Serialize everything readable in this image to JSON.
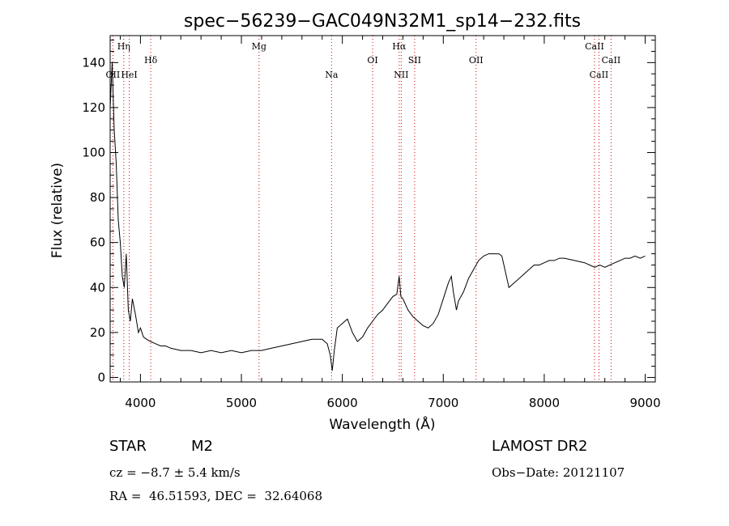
{
  "chart_data": {
    "type": "line",
    "title": "spec−56239−GAC049N32M1_sp14−232.fits",
    "xlabel": "Wavelength (Å)",
    "ylabel": "Flux (relative)",
    "xlim": [
      3700,
      9100
    ],
    "ylim": [
      -2,
      152
    ],
    "xticks": [
      4000,
      5000,
      6000,
      7000,
      8000,
      9000
    ],
    "yticks": [
      0,
      20,
      40,
      60,
      80,
      100,
      120,
      140
    ],
    "grid": false,
    "spectrum": {
      "x": [
        3700,
        3720,
        3740,
        3760,
        3780,
        3800,
        3820,
        3840,
        3860,
        3880,
        3900,
        3920,
        3950,
        3980,
        4000,
        4030,
        4060,
        4100,
        4150,
        4200,
        4250,
        4300,
        4400,
        4500,
        4600,
        4700,
        4800,
        4900,
        5000,
        5100,
        5200,
        5300,
        5400,
        5500,
        5600,
        5700,
        5800,
        5850,
        5880,
        5900,
        5920,
        5950,
        6000,
        6050,
        6100,
        6150,
        6200,
        6250,
        6300,
        6350,
        6400,
        6450,
        6500,
        6540,
        6563,
        6580,
        6600,
        6650,
        6700,
        6750,
        6800,
        6850,
        6900,
        6950,
        7000,
        7050,
        7080,
        7100,
        7130,
        7150,
        7200,
        7250,
        7300,
        7350,
        7400,
        7450,
        7500,
        7550,
        7580,
        7600,
        7650,
        7700,
        7750,
        7800,
        7850,
        7900,
        7950,
        8000,
        8050,
        8100,
        8150,
        8200,
        8300,
        8400,
        8450,
        8500,
        8550,
        8600,
        8650,
        8700,
        8750,
        8800,
        8850,
        8900,
        8950,
        9000
      ],
      "y": [
        120,
        140,
        110,
        95,
        70,
        60,
        45,
        40,
        55,
        30,
        25,
        35,
        28,
        20,
        22,
        18,
        17,
        16,
        15,
        14,
        14,
        13,
        12,
        12,
        11,
        12,
        11,
        12,
        11,
        12,
        12,
        13,
        14,
        15,
        16,
        17,
        17,
        15,
        10,
        3,
        12,
        22,
        24,
        26,
        20,
        16,
        18,
        22,
        25,
        28,
        30,
        33,
        36,
        37,
        45,
        36,
        35,
        30,
        27,
        25,
        23,
        22,
        24,
        28,
        35,
        42,
        45,
        38,
        30,
        34,
        38,
        44,
        48,
        52,
        54,
        55,
        55,
        55,
        54,
        50,
        40,
        42,
        44,
        46,
        48,
        50,
        50,
        51,
        52,
        52,
        53,
        53,
        52,
        51,
        50,
        49,
        50,
        49,
        50,
        51,
        52,
        53,
        53,
        54,
        53,
        54
      ]
    },
    "emission_lines": [
      {
        "name": "OII",
        "wl": 3727,
        "row": 2
      },
      {
        "name": "Hη",
        "wl": 3835,
        "row": 0
      },
      {
        "name": "HeI",
        "wl": 3889,
        "row": 2
      },
      {
        "name": "Hδ",
        "wl": 4102,
        "row": 1
      },
      {
        "name": "Mg",
        "wl": 5175,
        "row": 0
      },
      {
        "name": "Na",
        "wl": 5893,
        "row": 2
      },
      {
        "name": "OI",
        "wl": 6300,
        "row": 1
      },
      {
        "name": "Hα",
        "wl": 6563,
        "row": 0
      },
      {
        "name": "NII",
        "wl": 6583,
        "row": 2
      },
      {
        "name": "SII",
        "wl": 6716,
        "row": 1
      },
      {
        "name": "OII",
        "wl": 7325,
        "row": 1
      },
      {
        "name": "CaII",
        "wl": 8498,
        "row": 0
      },
      {
        "name": "CaII",
        "wl": 8542,
        "row": 2
      },
      {
        "name": "CaII",
        "wl": 8662,
        "row": 1
      }
    ]
  },
  "info": {
    "object_class": "STAR",
    "subclass": "M2",
    "survey": "LAMOST DR2",
    "redshift": "cz = −8.7 ± 5.4 km/s",
    "obs_date": "Obs−Date: 20121107",
    "coords": "RA =  46.51593, DEC =  32.64068"
  },
  "colors": {
    "line_marker": "#cc0000",
    "spectrum": "#000000"
  }
}
